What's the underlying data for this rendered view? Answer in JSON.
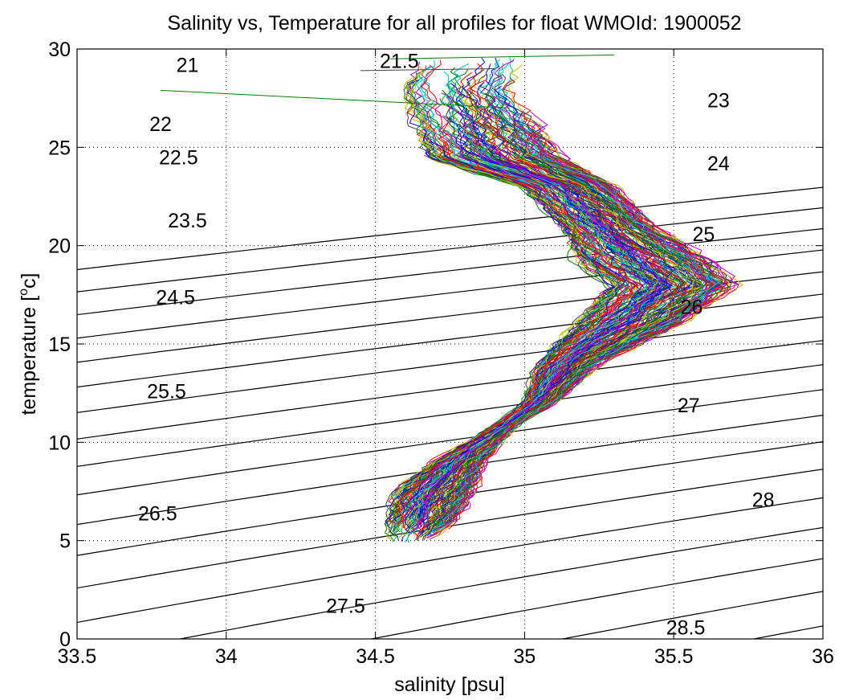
{
  "chart_data": {
    "type": "line",
    "title": "Salinity vs, Temperature for all profiles for float WMOId: 1900052",
    "xlabel": "salinity [psu]",
    "ylabel_main": "temperature [",
    "ylabel_sup": "o",
    "ylabel_tail": "c]",
    "xlim": [
      33.5,
      36
    ],
    "ylim": [
      0,
      30
    ],
    "xticks": [
      33.5,
      34,
      34.5,
      35,
      35.5,
      36
    ],
    "xtick_labels": [
      "33.5",
      "34",
      "34.5",
      "35",
      "35.5",
      "36"
    ],
    "yticks": [
      0,
      5,
      10,
      15,
      20,
      25,
      30
    ],
    "ytick_labels": [
      "0",
      "5",
      "10",
      "15",
      "20",
      "25",
      "30"
    ],
    "grid": true,
    "line_colors": [
      "#0000ff",
      "#008000",
      "#ff0000",
      "#00bfbf",
      "#bf00bf",
      "#bfbf00",
      "#404040"
    ],
    "density_contours": [
      {
        "label": "21",
        "s": 33.87,
        "t": 29.2
      },
      {
        "label": "21.5",
        "s": 34.58,
        "t": 29.4
      },
      {
        "label": "22",
        "s": 33.78,
        "t": 26.2
      },
      {
        "label": "22.5",
        "s": 33.84,
        "t": 24.5
      },
      {
        "label": "23",
        "s": 35.65,
        "t": 27.4
      },
      {
        "label": "23.5",
        "s": 33.87,
        "t": 21.3
      },
      {
        "label": "24",
        "s": 35.65,
        "t": 24.2
      },
      {
        "label": "24.5",
        "s": 33.83,
        "t": 17.4
      },
      {
        "label": "25",
        "s": 35.6,
        "t": 20.6
      },
      {
        "label": "25.5",
        "s": 33.8,
        "t": 12.6
      },
      {
        "label": "26",
        "s": 35.56,
        "t": 16.9
      },
      {
        "label": "26.5",
        "s": 33.77,
        "t": 6.4
      },
      {
        "label": "27",
        "s": 35.55,
        "t": 11.9
      },
      {
        "label": "27.5",
        "s": 34.4,
        "t": 1.7
      },
      {
        "label": "28",
        "s": 35.8,
        "t": 7.1
      },
      {
        "label": "28.5",
        "s": 35.54,
        "t": 0.6
      }
    ],
    "envelope": [
      {
        "t": 29.5,
        "s_center": 34.83,
        "spread": 0.17
      },
      {
        "t": 28.0,
        "s_center": 34.78,
        "spread": 0.18
      },
      {
        "t": 26.0,
        "s_center": 34.85,
        "spread": 0.2
      },
      {
        "t": 24.5,
        "s_center": 34.9,
        "spread": 0.22
      },
      {
        "t": 23.0,
        "s_center": 35.15,
        "spread": 0.15
      },
      {
        "t": 21.0,
        "s_center": 35.28,
        "spread": 0.15
      },
      {
        "t": 19.0,
        "s_center": 35.42,
        "spread": 0.22
      },
      {
        "t": 18.0,
        "s_center": 35.5,
        "spread": 0.2
      },
      {
        "t": 16.0,
        "s_center": 35.35,
        "spread": 0.17
      },
      {
        "t": 14.0,
        "s_center": 35.15,
        "spread": 0.1
      },
      {
        "t": 12.0,
        "s_center": 35.05,
        "spread": 0.05
      },
      {
        "t": 11.0,
        "s_center": 34.95,
        "spread": 0.03
      },
      {
        "t": 9.0,
        "s_center": 34.78,
        "spread": 0.08
      },
      {
        "t": 7.5,
        "s_center": 34.7,
        "spread": 0.13
      },
      {
        "t": 6.0,
        "s_center": 34.66,
        "spread": 0.11
      },
      {
        "t": 5.0,
        "s_center": 34.62,
        "spread": 0.06
      }
    ],
    "profile_count": 180
  }
}
